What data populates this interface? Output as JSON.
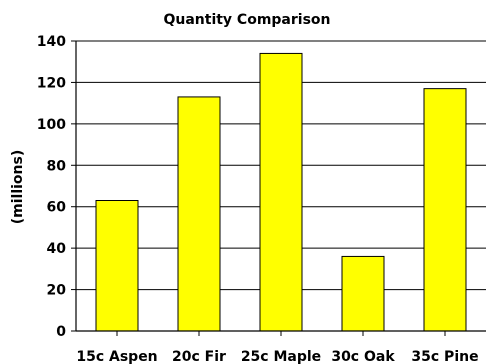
{
  "chart_data": {
    "type": "bar",
    "title": "Quantity Comparison",
    "ylabel": "(millions)",
    "xlabel": "",
    "categories": [
      "15c Aspen",
      "20c Fir",
      "25c Maple",
      "30c Oak",
      "35c Pine"
    ],
    "values": [
      63,
      113,
      134,
      36,
      117
    ],
    "ylim": [
      0,
      140
    ],
    "yticks": [
      0,
      20,
      40,
      60,
      80,
      100,
      120,
      140
    ],
    "grid": true,
    "bar_color": "#ffff00",
    "legend": "none"
  }
}
